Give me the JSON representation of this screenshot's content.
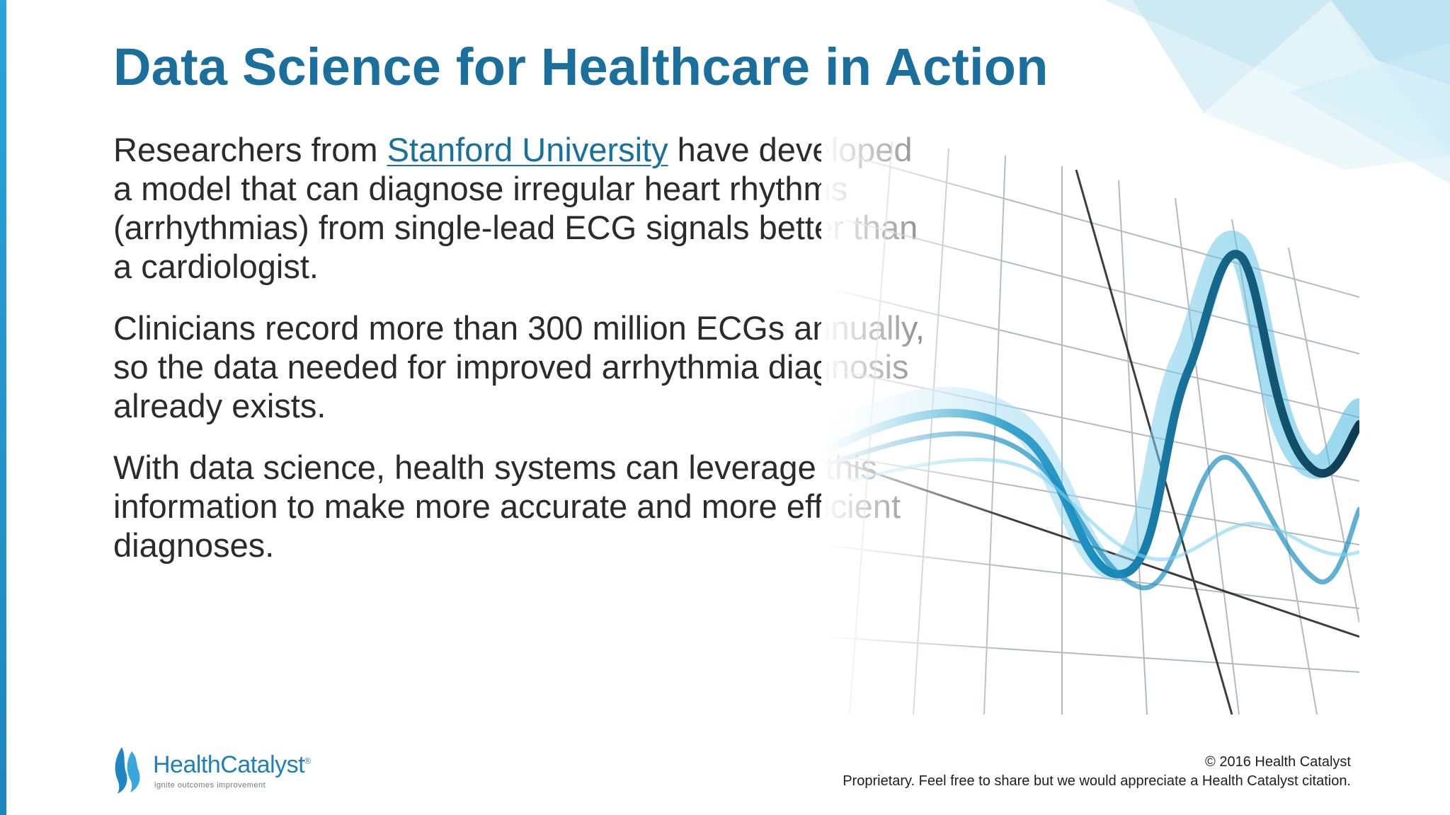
{
  "slide": {
    "title": "Data Science for Healthcare in Action",
    "paragraph1": {
      "before_link": "Researchers from ",
      "link_text": "Stanford University",
      "after_link": " have developed a model that can diagnose irregular heart rhythms (arrhythmias) from single-lead ECG signals better than a cardiologist."
    },
    "paragraph2": "Clinicians record more than 300 million ECGs annually, so the data needed for improved arrhythmia diagnosis already exists.",
    "paragraph3": "With data science, health systems can leverage this information to make more accurate and more efficient diagnoses."
  },
  "logo": {
    "name_part1": "Health",
    "name_part2": "Catalyst",
    "trademark": "®",
    "tagline": "ignite outcomes improvement"
  },
  "footer": {
    "copyright": "© 2016 Health Catalyst",
    "notice": "Proprietary. Feel free to share but we would appreciate a Health Catalyst citation."
  },
  "colors": {
    "title": "#1a6f9c",
    "link": "#17709e",
    "accent_bar": "#2aa3d6",
    "body_text": "#2b2b2b"
  },
  "icons": [
    "health-catalyst-flame-icon",
    "ecg-wave-grid-illustration"
  ]
}
